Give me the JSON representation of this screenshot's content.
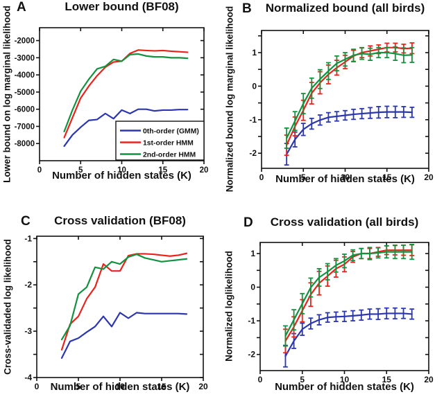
{
  "figure": {
    "background": "#ffffff",
    "text_color": "#111111"
  },
  "colors": {
    "blue": "#2b35ae",
    "red": "#e8231c",
    "green": "#12913e",
    "axis": "#111111"
  },
  "chart_data": [
    {
      "type": "line",
      "panel_label": "A",
      "title": "Lower bound (BF08)",
      "xlabel": "Number of hidden states (K)",
      "ylabel": "Lower bound on log marginal likelihood",
      "xlim": [
        0,
        20
      ],
      "ylim": [
        -9000,
        -1250
      ],
      "xticks": [
        0,
        5,
        10,
        15,
        20
      ],
      "yticks": [
        -8000,
        -7000,
        -6000,
        -5000,
        -4000,
        -3000,
        -2000
      ],
      "ytick_step": null,
      "grid": false,
      "legend": {
        "show": true,
        "position": "lower right"
      },
      "x": [
        3,
        4,
        5,
        6,
        7,
        8,
        9,
        10,
        11,
        12,
        13,
        14,
        15,
        16,
        17,
        18
      ],
      "series": [
        {
          "name": "0th-order (GMM)",
          "color": "#2b35ae",
          "values": [
            -8150,
            -7500,
            -7050,
            -6650,
            -6600,
            -6250,
            -6550,
            -6050,
            -6250,
            -6000,
            -6000,
            -6100,
            -6050,
            -6050,
            -6020,
            -6020
          ]
        },
        {
          "name": "1st-order HMM",
          "color": "#e8231c",
          "values": [
            -7650,
            -6500,
            -5350,
            -4650,
            -4050,
            -3550,
            -3250,
            -3200,
            -2750,
            -2550,
            -2580,
            -2600,
            -2580,
            -2620,
            -2650,
            -2680
          ]
        },
        {
          "name": "2nd-order HMM",
          "color": "#12913e",
          "values": [
            -7300,
            -6050,
            -4950,
            -4250,
            -3650,
            -3500,
            -3100,
            -3200,
            -2820,
            -2780,
            -2900,
            -2950,
            -2950,
            -3000,
            -3000,
            -3030
          ]
        }
      ]
    },
    {
      "type": "line",
      "panel_label": "B",
      "title": "Normalized bound (all birds)",
      "xlabel": "Number of hidden states (K)",
      "ylabel": "Normalized bound log marginal likelihood",
      "xlim": [
        0,
        20
      ],
      "ylim": [
        -2.45,
        1.66
      ],
      "xticks": [
        0,
        5,
        10,
        15,
        20
      ],
      "yticks": [
        -2,
        -1,
        0,
        1
      ],
      "ytick_step": 0.5,
      "grid": false,
      "legend": {
        "show": false
      },
      "x": [
        3,
        4,
        5,
        6,
        7,
        8,
        9,
        10,
        11,
        12,
        13,
        14,
        15,
        16,
        17,
        18
      ],
      "series": [
        {
          "name": "0th-order (GMM)",
          "color": "#2b35ae",
          "values": [
            -2.03,
            -1.59,
            -1.29,
            -1.12,
            -1.01,
            -0.93,
            -0.9,
            -0.87,
            -0.84,
            -0.82,
            -0.8,
            -0.78,
            -0.77,
            -0.77,
            -0.77,
            -0.78
          ],
          "errors": [
            0.32,
            0.22,
            0.18,
            0.16,
            0.15,
            0.14,
            0.14,
            0.14,
            0.15,
            0.15,
            0.16,
            0.17,
            0.17,
            0.17,
            0.16,
            0.15
          ]
        },
        {
          "name": "1st-order HMM",
          "color": "#e8231c",
          "values": [
            -1.76,
            -1.2,
            -0.72,
            -0.21,
            0.1,
            0.35,
            0.55,
            0.72,
            0.9,
            1.0,
            1.05,
            1.1,
            1.15,
            1.15,
            1.12,
            1.13
          ],
          "errors": [
            0.3,
            0.28,
            0.3,
            0.32,
            0.33,
            0.28,
            0.22,
            0.2,
            0.17,
            0.15,
            0.15,
            0.13,
            0.13,
            0.13,
            0.13,
            0.16
          ]
        },
        {
          "name": "2nd-order HMM",
          "color": "#12913e",
          "values": [
            -1.55,
            -1.04,
            -0.52,
            -0.06,
            0.21,
            0.45,
            0.68,
            0.8,
            0.92,
            0.97,
            0.95,
            1.0,
            1.0,
            0.97,
            0.92,
            0.93
          ],
          "errors": [
            0.3,
            0.28,
            0.3,
            0.3,
            0.28,
            0.25,
            0.22,
            0.2,
            0.18,
            0.17,
            0.18,
            0.15,
            0.15,
            0.2,
            0.22,
            0.22
          ]
        }
      ]
    },
    {
      "type": "line",
      "panel_label": "C",
      "title": "Cross validation (BF08)",
      "xlabel": "Number of hidden states (K)",
      "ylabel": "Cross-validaded log likelihood",
      "xlim": [
        0,
        20
      ],
      "ylim": [
        -4,
        -0.95
      ],
      "xticks": [
        0,
        5,
        10,
        15,
        20
      ],
      "yticks": [
        -4,
        -3,
        -2,
        -1
      ],
      "ytick_step": 0.5,
      "grid": false,
      "legend": {
        "show": false
      },
      "x": [
        3,
        4,
        5,
        6,
        7,
        8,
        9,
        10,
        11,
        12,
        13,
        14,
        15,
        16,
        17,
        18
      ],
      "series": [
        {
          "name": "0th-order (GMM)",
          "color": "#2b35ae",
          "values": [
            -3.58,
            -3.22,
            -3.15,
            -3.02,
            -2.9,
            -2.68,
            -2.9,
            -2.6,
            -2.72,
            -2.6,
            -2.62,
            -2.62,
            -2.62,
            -2.62,
            -2.62,
            -2.63
          ]
        },
        {
          "name": "1st-order HMM",
          "color": "#e8231c",
          "values": [
            -3.4,
            -2.85,
            -2.68,
            -2.3,
            -2.05,
            -1.55,
            -1.7,
            -1.7,
            -1.37,
            -1.33,
            -1.33,
            -1.34,
            -1.36,
            -1.38,
            -1.36,
            -1.32
          ]
        },
        {
          "name": "2nd-order HMM",
          "color": "#12913e",
          "values": [
            -3.18,
            -2.88,
            -2.2,
            -2.05,
            -1.62,
            -1.66,
            -1.5,
            -1.55,
            -1.4,
            -1.34,
            -1.42,
            -1.46,
            -1.5,
            -1.48,
            -1.46,
            -1.44
          ]
        }
      ]
    },
    {
      "type": "line",
      "panel_label": "D",
      "title": "Cross validation (all birds)",
      "xlabel": "Number of hidden states (K)",
      "ylabel": "Normalized loglikelihood",
      "xlim": [
        0,
        20
      ],
      "ylim": [
        -2.48,
        1.33
      ],
      "xticks": [
        0,
        5,
        10,
        15,
        20
      ],
      "yticks": [
        -2,
        -1,
        0,
        1
      ],
      "ytick_step": 0.5,
      "grid": false,
      "legend": {
        "show": false
      },
      "x": [
        3,
        4,
        5,
        6,
        7,
        8,
        9,
        10,
        11,
        12,
        13,
        14,
        15,
        16,
        17,
        18
      ],
      "series": [
        {
          "name": "0th-order (GMM)",
          "color": "#2b35ae",
          "values": [
            -2.05,
            -1.6,
            -1.25,
            -1.08,
            -0.97,
            -0.9,
            -0.88,
            -0.87,
            -0.85,
            -0.83,
            -0.8,
            -0.8,
            -0.78,
            -0.78,
            -0.78,
            -0.8
          ],
          "errors": [
            0.32,
            0.22,
            0.18,
            0.16,
            0.15,
            0.14,
            0.14,
            0.15,
            0.15,
            0.15,
            0.15,
            0.16,
            0.16,
            0.16,
            0.15,
            0.15
          ]
        },
        {
          "name": "1st-order HMM",
          "color": "#e8231c",
          "values": [
            -1.6,
            -1.18,
            -0.7,
            -0.22,
            0.12,
            0.33,
            0.55,
            0.68,
            0.9,
            1.0,
            1.0,
            1.05,
            1.1,
            1.1,
            1.1,
            1.1
          ],
          "errors": [
            0.35,
            0.3,
            0.33,
            0.35,
            0.35,
            0.3,
            0.25,
            0.22,
            0.16,
            0.15,
            0.15,
            0.13,
            0.13,
            0.14,
            0.15,
            0.16
          ]
        },
        {
          "name": "2nd-order HMM",
          "color": "#12913e",
          "values": [
            -1.45,
            -0.97,
            -0.49,
            -0.01,
            0.29,
            0.46,
            0.65,
            0.78,
            0.95,
            1.0,
            1.0,
            1.02,
            1.05,
            1.05,
            1.05,
            1.05
          ],
          "errors": [
            0.3,
            0.3,
            0.3,
            0.28,
            0.26,
            0.24,
            0.2,
            0.2,
            0.16,
            0.15,
            0.18,
            0.15,
            0.18,
            0.2,
            0.2,
            0.22
          ]
        }
      ]
    }
  ]
}
